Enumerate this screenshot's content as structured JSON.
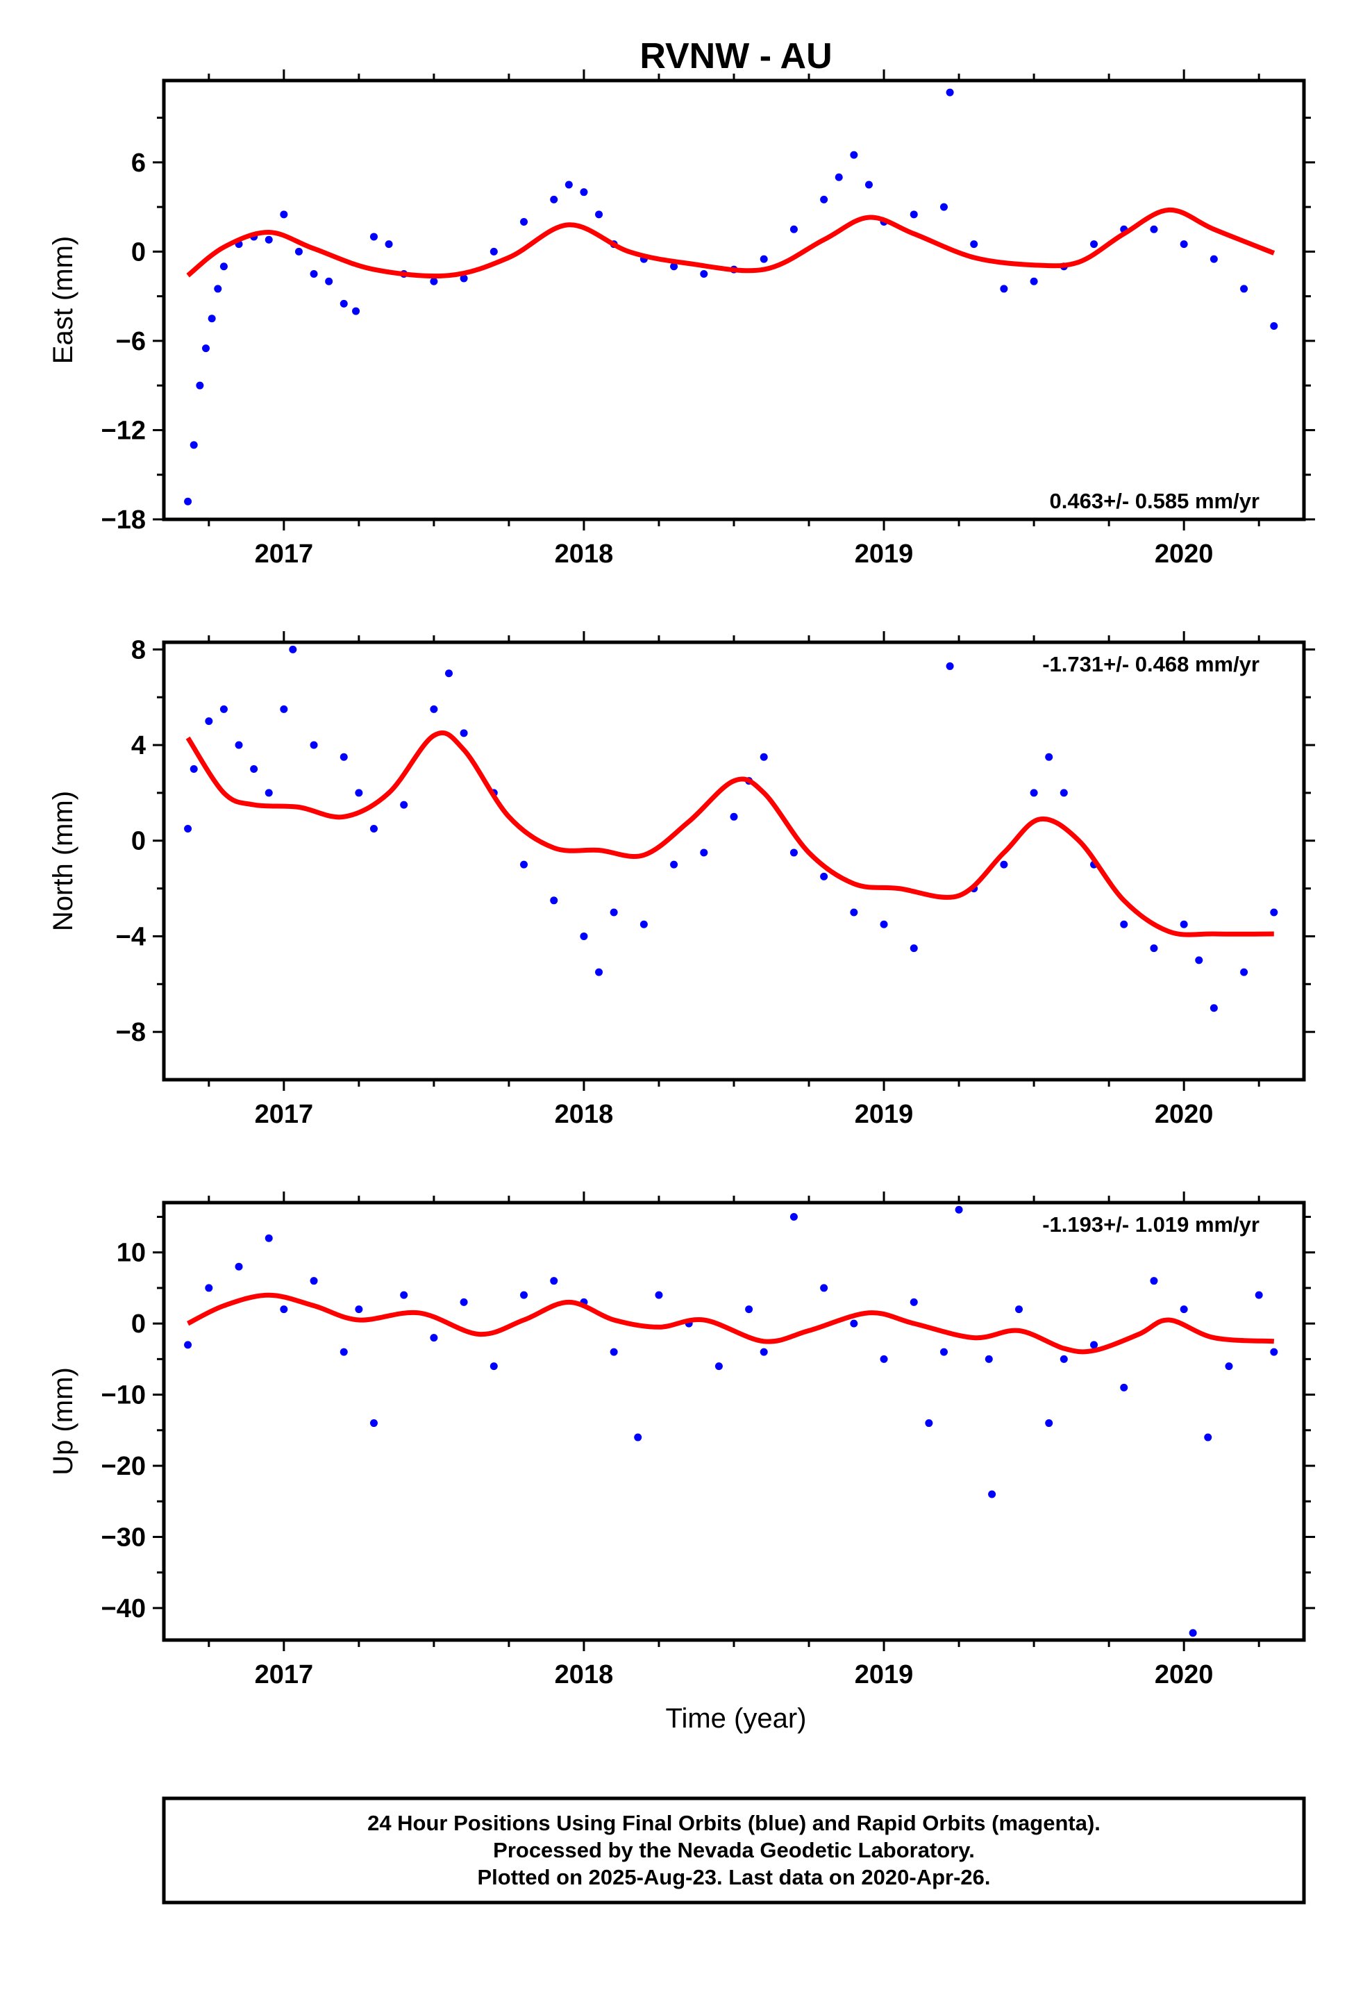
{
  "chart_data": {
    "title": "RVNW - AU",
    "type": "scatter",
    "xlabel": "Time (year)",
    "xlim": [
      2016.6,
      2020.4
    ],
    "xticks": [
      2017,
      2018,
      2019,
      2020
    ],
    "colors": {
      "points": "#0000ff",
      "fit": "#ff0000",
      "frame": "#000000"
    },
    "panels": [
      {
        "id": "east",
        "ylabel": "East (mm)",
        "ylim": [
          -18,
          11.5
        ],
        "yticks": [
          6,
          0,
          -6,
          -12,
          -18
        ],
        "rate_text": "0.463+/- 0.585 mm/yr",
        "rate_position": "bottom-right",
        "fit": {
          "x": [
            2016.68,
            2016.8,
            2016.95,
            2017.1,
            2017.3,
            2017.55,
            2017.75,
            2017.95,
            2018.15,
            2018.35,
            2018.6,
            2018.8,
            2018.95,
            2019.1,
            2019.3,
            2019.5,
            2019.65,
            2019.8,
            2019.95,
            2020.1,
            2020.3
          ],
          "y": [
            -1.6,
            0.3,
            1.3,
            0.2,
            -1.2,
            -1.6,
            -0.4,
            1.8,
            0.0,
            -0.8,
            -1.2,
            0.8,
            2.3,
            1.2,
            -0.4,
            -0.9,
            -0.7,
            1.2,
            2.8,
            1.5,
            -0.1
          ]
        },
        "points": {
          "x": [
            2016.68,
            2016.7,
            2016.72,
            2016.74,
            2016.76,
            2016.78,
            2016.8,
            2016.85,
            2016.9,
            2016.95,
            2017.0,
            2017.05,
            2017.1,
            2017.15,
            2017.2,
            2017.24,
            2017.3,
            2017.35,
            2017.4,
            2017.5,
            2017.6,
            2017.7,
            2017.8,
            2017.9,
            2017.95,
            2018.0,
            2018.05,
            2018.1,
            2018.2,
            2018.3,
            2018.4,
            2018.5,
            2018.6,
            2018.7,
            2018.8,
            2018.85,
            2018.9,
            2018.95,
            2019.0,
            2019.1,
            2019.2,
            2019.22,
            2019.3,
            2019.4,
            2019.5,
            2019.6,
            2019.7,
            2019.8,
            2019.9,
            2020.0,
            2020.1,
            2020.2,
            2020.3
          ],
          "y": [
            -16.8,
            -13.0,
            -9.0,
            -6.5,
            -4.5,
            -2.5,
            -1.0,
            0.5,
            1.0,
            0.8,
            2.5,
            0.0,
            -1.5,
            -2.0,
            -3.5,
            -4.0,
            1.0,
            0.5,
            -1.5,
            -2.0,
            -1.8,
            0.0,
            2.0,
            3.5,
            4.5,
            4.0,
            2.5,
            0.5,
            -0.5,
            -1.0,
            -1.5,
            -1.2,
            -0.5,
            1.5,
            3.5,
            5.0,
            6.5,
            4.5,
            2.0,
            2.5,
            3.0,
            10.7,
            0.5,
            -2.5,
            -2.0,
            -1.0,
            0.5,
            1.5,
            1.5,
            0.5,
            -0.5,
            -2.5,
            -5.0
          ]
        }
      },
      {
        "id": "north",
        "ylabel": "North (mm)",
        "ylim": [
          -10,
          8.3
        ],
        "yticks": [
          8,
          4,
          0,
          -4,
          -8
        ],
        "rate_text": "-1.731+/- 0.468 mm/yr",
        "rate_position": "top-right",
        "fit": {
          "x": [
            2016.68,
            2016.8,
            2016.9,
            2017.05,
            2017.2,
            2017.35,
            2017.5,
            2017.6,
            2017.75,
            2017.9,
            2018.05,
            2018.2,
            2018.35,
            2018.5,
            2018.6,
            2018.75,
            2018.9,
            2019.05,
            2019.25,
            2019.4,
            2019.52,
            2019.65,
            2019.8,
            2019.95,
            2020.1,
            2020.3
          ],
          "y": [
            4.3,
            2.0,
            1.5,
            1.4,
            1.0,
            2.0,
            4.4,
            3.8,
            1.0,
            -0.3,
            -0.4,
            -0.6,
            0.8,
            2.5,
            2.0,
            -0.5,
            -1.8,
            -2.0,
            -2.3,
            -0.5,
            0.9,
            0.0,
            -2.5,
            -3.8,
            -3.9,
            -3.9
          ]
        },
        "points": {
          "x": [
            2016.68,
            2016.7,
            2016.75,
            2016.8,
            2016.85,
            2016.9,
            2016.95,
            2017.0,
            2017.03,
            2017.1,
            2017.2,
            2017.25,
            2017.3,
            2017.4,
            2017.5,
            2017.55,
            2017.6,
            2017.7,
            2017.8,
            2017.9,
            2018.0,
            2018.05,
            2018.1,
            2018.2,
            2018.3,
            2018.4,
            2018.5,
            2018.55,
            2018.6,
            2018.7,
            2018.8,
            2018.9,
            2019.0,
            2019.1,
            2019.22,
            2019.3,
            2019.4,
            2019.5,
            2019.55,
            2019.6,
            2019.7,
            2019.8,
            2019.9,
            2020.0,
            2020.05,
            2020.1,
            2020.2,
            2020.3
          ],
          "y": [
            0.5,
            3.0,
            5.0,
            5.5,
            4.0,
            3.0,
            2.0,
            5.5,
            8.0,
            4.0,
            3.5,
            2.0,
            0.5,
            1.5,
            5.5,
            7.0,
            4.5,
            2.0,
            -1.0,
            -2.5,
            -4.0,
            -5.5,
            -3.0,
            -3.5,
            -1.0,
            -0.5,
            1.0,
            2.5,
            3.5,
            -0.5,
            -1.5,
            -3.0,
            -3.5,
            -4.5,
            7.3,
            -2.0,
            -1.0,
            2.0,
            3.5,
            2.0,
            -1.0,
            -3.5,
            -4.5,
            -3.5,
            -5.0,
            -7.0,
            -5.5,
            -3.0
          ]
        }
      },
      {
        "id": "up",
        "ylabel": "Up (mm)",
        "ylim": [
          -44.5,
          17
        ],
        "yticks": [
          10,
          0,
          -10,
          -20,
          -30,
          -40
        ],
        "rate_text": "-1.193+/- 1.019 mm/yr",
        "rate_position": "top-right",
        "fit": {
          "x": [
            2016.68,
            2016.8,
            2016.95,
            2017.1,
            2017.25,
            2017.45,
            2017.65,
            2017.8,
            2017.95,
            2018.1,
            2018.25,
            2018.4,
            2018.6,
            2018.75,
            2018.95,
            2019.1,
            2019.3,
            2019.45,
            2019.6,
            2019.7,
            2019.85,
            2019.95,
            2020.1,
            2020.3
          ],
          "y": [
            0.0,
            2.5,
            4.0,
            2.5,
            0.5,
            1.5,
            -1.5,
            0.5,
            3.0,
            0.5,
            -0.5,
            0.5,
            -2.5,
            -1.0,
            1.5,
            0.0,
            -2.0,
            -1.0,
            -3.5,
            -3.8,
            -1.5,
            0.5,
            -2.0,
            -2.5
          ]
        },
        "points": {
          "x": [
            2016.68,
            2016.75,
            2016.85,
            2016.95,
            2017.0,
            2017.1,
            2017.2,
            2017.25,
            2017.3,
            2017.4,
            2017.5,
            2017.6,
            2017.7,
            2017.8,
            2017.9,
            2018.0,
            2018.1,
            2018.18,
            2018.25,
            2018.35,
            2018.45,
            2018.55,
            2018.6,
            2018.7,
            2018.8,
            2018.9,
            2019.0,
            2019.1,
            2019.15,
            2019.2,
            2019.25,
            2019.35,
            2019.36,
            2019.45,
            2019.55,
            2019.6,
            2019.7,
            2019.8,
            2019.9,
            2020.0,
            2020.03,
            2020.08,
            2020.15,
            2020.25,
            2020.3
          ],
          "y": [
            -3.0,
            5.0,
            8.0,
            12.0,
            2.0,
            6.0,
            -4.0,
            2.0,
            -14.0,
            4.0,
            -2.0,
            3.0,
            -6.0,
            4.0,
            6.0,
            3.0,
            -4.0,
            -16.0,
            4.0,
            0.0,
            -6.0,
            2.0,
            -4.0,
            15.0,
            5.0,
            0.0,
            -5.0,
            3.0,
            -14.0,
            -4.0,
            16.0,
            -5.0,
            -24.0,
            2.0,
            -14.0,
            -5.0,
            -3.0,
            -9.0,
            6.0,
            2.0,
            -43.5,
            -16.0,
            -6.0,
            4.0,
            -4.0
          ]
        }
      }
    ]
  },
  "footer": {
    "line1": "24 Hour Positions Using Final Orbits (blue) and Rapid Orbits (magenta).",
    "line2": "Processed by the Nevada Geodetic Laboratory.",
    "line3": "Plotted on 2025-Aug-23. Last data on 2020-Apr-26."
  }
}
